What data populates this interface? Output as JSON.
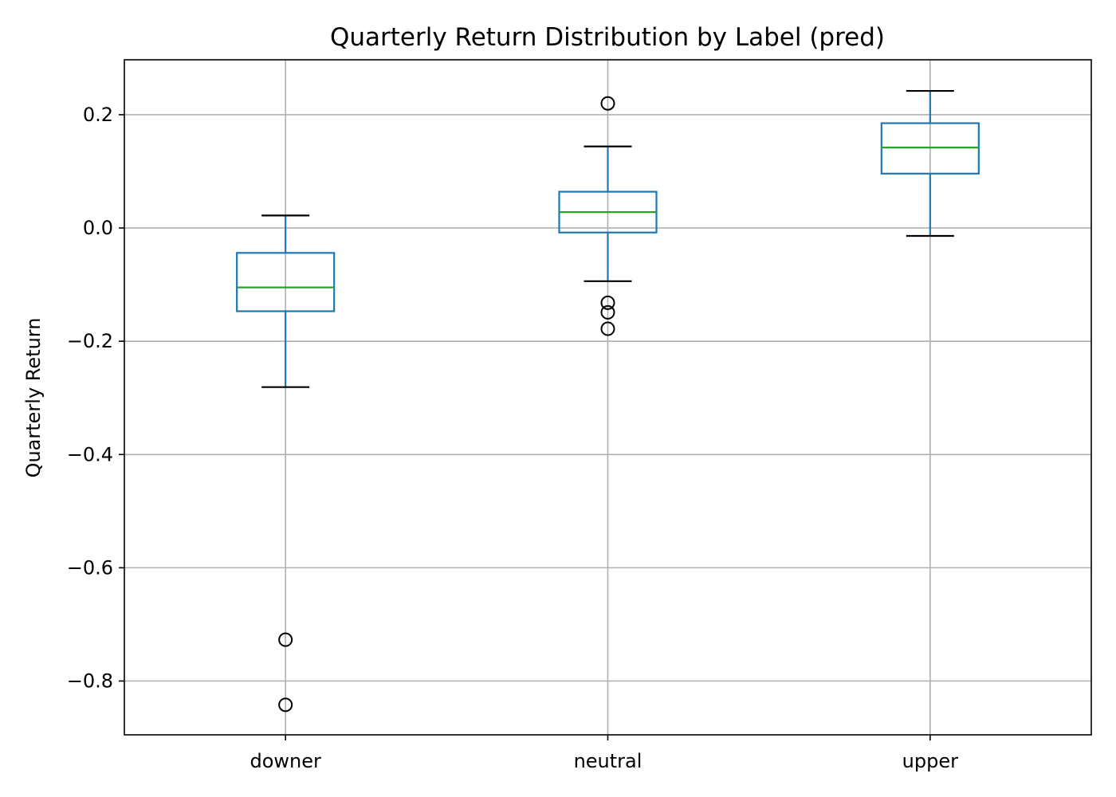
{
  "chart_data": {
    "type": "box",
    "title": "Quarterly Return Distribution by Label (pred)",
    "xlabel": "",
    "ylabel": "Quarterly Return",
    "ylim": [
      -0.895,
      0.297
    ],
    "yticks": [
      0.2,
      0.0,
      -0.2,
      -0.4,
      -0.6,
      -0.8
    ],
    "ytick_labels": [
      "0.2",
      "0.0",
      "−0.2",
      "−0.4",
      "−0.6",
      "−0.8"
    ],
    "grid": true,
    "colors": {
      "box": "#1f77b4",
      "median": "#2ca02c",
      "whisker_cap": "#000000",
      "flier": "#000000",
      "grid": "#b0b0b0"
    },
    "categories": [
      "downer",
      "neutral",
      "upper"
    ],
    "boxes": [
      {
        "label": "downer",
        "whisker_low": -0.281,
        "q1": -0.147,
        "median": -0.105,
        "q3": -0.044,
        "whisker_high": 0.022,
        "fliers": [
          -0.727,
          -0.842
        ]
      },
      {
        "label": "neutral",
        "whisker_low": -0.094,
        "q1": -0.008,
        "median": 0.028,
        "q3": 0.064,
        "whisker_high": 0.144,
        "fliers": [
          0.22,
          -0.132,
          -0.149,
          -0.178
        ]
      },
      {
        "label": "upper",
        "whisker_low": -0.014,
        "q1": 0.096,
        "median": 0.142,
        "q3": 0.185,
        "whisker_high": 0.242,
        "fliers": []
      }
    ]
  }
}
